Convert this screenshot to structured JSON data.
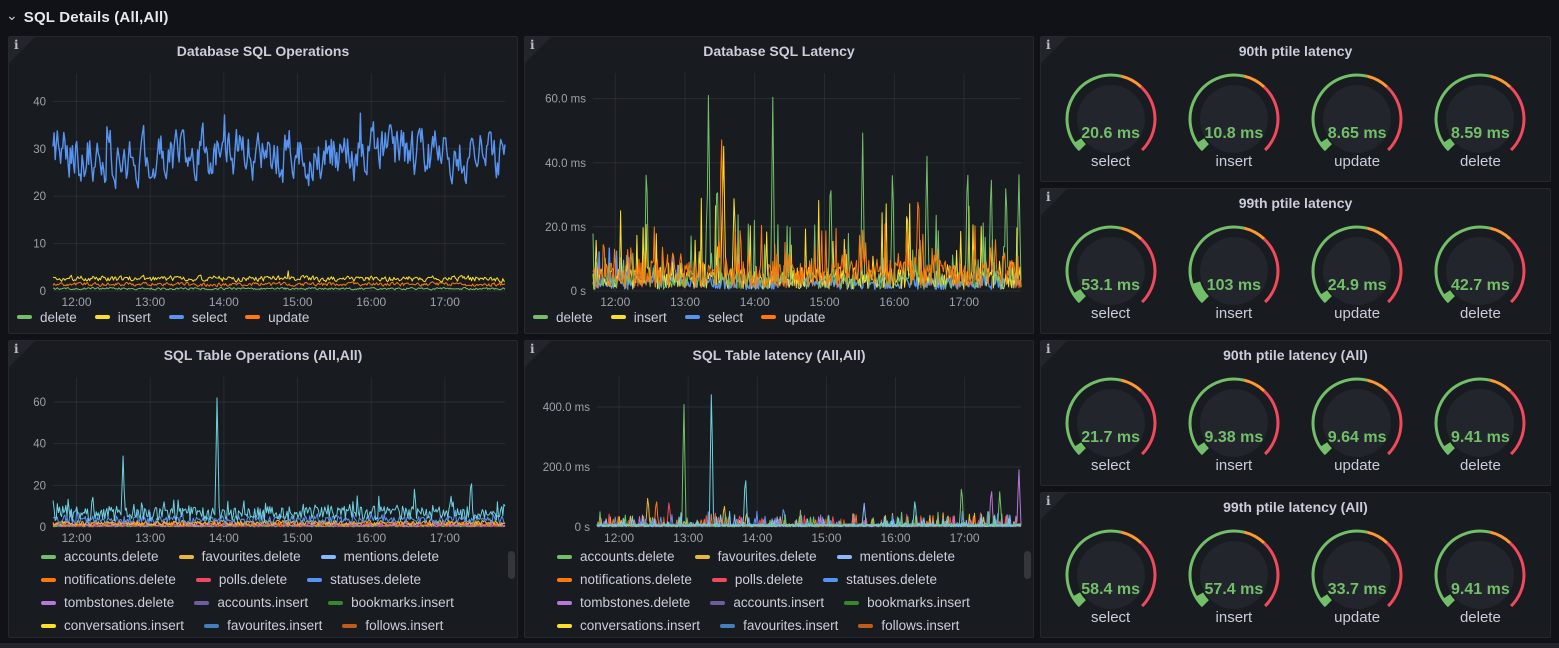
{
  "page": {
    "background": "#111217",
    "panel_bg": "#181b1f",
    "accent_green": "#73BF69",
    "gauge_orange": "#FF9830",
    "gauge_red": "#F2495C"
  },
  "row_header": {
    "title": "SQL Details (All,All)",
    "icon": "chevron-down"
  },
  "panels": {
    "db_ops": {
      "title": "Database SQL Operations",
      "legend": [
        {
          "label": "delete",
          "color": "#73BF69"
        },
        {
          "label": "insert",
          "color": "#FADE2A"
        },
        {
          "label": "select",
          "color": "#5794F2"
        },
        {
          "label": "update",
          "color": "#FF780A"
        }
      ],
      "chart_data": {
        "type": "line",
        "title": "Database SQL Operations",
        "x_ticks": [
          "12:00",
          "13:00",
          "14:00",
          "15:00",
          "16:00",
          "17:00"
        ],
        "y_ticks": [
          {
            "v": 0,
            "label": "0"
          },
          {
            "v": 10,
            "label": "10"
          },
          {
            "v": 20,
            "label": "20"
          },
          {
            "v": 30,
            "label": "30"
          },
          {
            "v": 40,
            "label": "40"
          }
        ],
        "ylim": [
          0,
          46
        ],
        "legend_position": "bottom",
        "grid": true,
        "series": [
          {
            "name": "delete",
            "color": "#73BF69",
            "base": 0.5,
            "noise": 0.3,
            "smooth": 0.3,
            "min": 0.1
          },
          {
            "name": "update",
            "color": "#FF780A",
            "base": 1.4,
            "noise": 0.6,
            "smooth": 0.4,
            "min": 0.5
          },
          {
            "name": "insert",
            "color": "#FADE2A",
            "base": 2.6,
            "noise": 0.9,
            "smooth": 0.4,
            "min": 1.2,
            "peaks": [
              {
                "x": 0.52,
                "v": 4.5
              }
            ]
          },
          {
            "name": "select",
            "color": "#5794F2",
            "base": 29,
            "noise": 10,
            "smooth": 0.58,
            "min": 19.5,
            "max": 41.5,
            "peaks": [
              {
                "x": 0.12,
                "v": 40
              },
              {
                "x": 0.38,
                "v": 41.5
              },
              {
                "x": 0.68,
                "v": 39
              }
            ]
          }
        ]
      }
    },
    "db_latency": {
      "title": "Database SQL Latency",
      "legend": [
        {
          "label": "delete",
          "color": "#73BF69"
        },
        {
          "label": "insert",
          "color": "#FADE2A"
        },
        {
          "label": "select",
          "color": "#5794F2"
        },
        {
          "label": "update",
          "color": "#FF780A"
        }
      ],
      "chart_data": {
        "type": "line",
        "title": "Database SQL Latency",
        "x_ticks": [
          "12:00",
          "13:00",
          "14:00",
          "15:00",
          "16:00",
          "17:00"
        ],
        "y_ticks": [
          {
            "v": 0,
            "label": "0 s"
          },
          {
            "v": 20,
            "label": "20.0 ms"
          },
          {
            "v": 40,
            "label": "40.0 ms"
          },
          {
            "v": 60,
            "label": "60.0 ms"
          }
        ],
        "ylim": [
          0,
          68
        ],
        "legend_position": "bottom",
        "grid": true,
        "series": [
          {
            "name": "select",
            "color": "#5794F2",
            "base": 2.5,
            "noise": 2,
            "spike_p": 0.1,
            "spike_amp": 10,
            "min": 0.3
          },
          {
            "name": "insert",
            "color": "#FADE2A",
            "base": 4,
            "noise": 3.5,
            "spike_p": 0.18,
            "spike_amp": 22,
            "min": 0.5,
            "peaks": [
              {
                "x": 0.305,
                "v": 50
              },
              {
                "x": 0.33,
                "v": 33
              }
            ]
          },
          {
            "name": "delete",
            "color": "#73BF69",
            "base": 3,
            "noise": 2.5,
            "spike_p": 0.15,
            "spike_amp": 20,
            "min": 0.5,
            "peaks": [
              {
                "x": 0.125,
                "v": 44
              },
              {
                "x": 0.27,
                "v": 65
              },
              {
                "x": 0.29,
                "v": 40
              },
              {
                "x": 0.42,
                "v": 61
              },
              {
                "x": 0.555,
                "v": 40
              },
              {
                "x": 0.63,
                "v": 50
              },
              {
                "x": 0.7,
                "v": 42
              },
              {
                "x": 0.78,
                "v": 46
              },
              {
                "x": 0.875,
                "v": 44
              },
              {
                "x": 0.93,
                "v": 41
              },
              {
                "x": 0.965,
                "v": 38
              },
              {
                "x": 0.995,
                "v": 38
              }
            ]
          },
          {
            "name": "update",
            "color": "#FF780A",
            "base": 5,
            "noise": 4.5,
            "spike_p": 0.3,
            "spike_amp": 14,
            "min": 1,
            "peaks": [
              {
                "x": 0.3,
                "v": 55
              },
              {
                "x": 0.76,
                "v": 35
              }
            ]
          }
        ]
      }
    },
    "gauge_90": {
      "title": "90th ptile latency",
      "gauges": [
        {
          "label": "select",
          "value": "20.6 ms"
        },
        {
          "label": "insert",
          "value": "10.8 ms"
        },
        {
          "label": "update",
          "value": "8.65 ms"
        },
        {
          "label": "delete",
          "value": "8.59 ms"
        }
      ]
    },
    "gauge_99": {
      "title": "99th ptile latency",
      "gauges": [
        {
          "label": "select",
          "value": "53.1 ms"
        },
        {
          "label": "insert",
          "value": "103 ms"
        },
        {
          "label": "update",
          "value": "24.9 ms"
        },
        {
          "label": "delete",
          "value": "42.7 ms"
        }
      ]
    },
    "table_ops": {
      "title": "SQL Table Operations (All,All)",
      "legend": [
        {
          "label": "accounts.delete",
          "color": "#73BF69"
        },
        {
          "label": "favourites.delete",
          "color": "#EAB839"
        },
        {
          "label": "mentions.delete",
          "color": "#8AB8FF"
        },
        {
          "label": "notifications.delete",
          "color": "#FF780A"
        },
        {
          "label": "polls.delete",
          "color": "#F2495C"
        },
        {
          "label": "statuses.delete",
          "color": "#5794F2"
        },
        {
          "label": "tombstones.delete",
          "color": "#B877D9"
        },
        {
          "label": "accounts.insert",
          "color": "#705DA0"
        },
        {
          "label": "bookmarks.insert",
          "color": "#37872D"
        },
        {
          "label": "conversations.insert",
          "color": "#FADE2A"
        },
        {
          "label": "favourites.insert",
          "color": "#447EBC"
        },
        {
          "label": "follows.insert",
          "color": "#C15C17"
        }
      ],
      "chart_data": {
        "type": "line",
        "title": "SQL Table Operations (All,All)",
        "x_ticks": [
          "12:00",
          "13:00",
          "14:00",
          "15:00",
          "16:00",
          "17:00"
        ],
        "y_ticks": [
          {
            "v": 0,
            "label": "0"
          },
          {
            "v": 20,
            "label": "20"
          },
          {
            "v": 40,
            "label": "40"
          },
          {
            "v": 60,
            "label": "60"
          }
        ],
        "ylim": [
          0,
          72
        ],
        "legend_position": "bottom",
        "grid": true,
        "series": [
          {
            "name": "accounts.delete",
            "color": "#73BF69",
            "base": 0.4,
            "noise": 0.3,
            "min": 0.1
          },
          {
            "name": "polls.delete",
            "color": "#F2495C",
            "base": 0.7,
            "noise": 0.5,
            "min": 0.1
          },
          {
            "name": "tombstones.delete",
            "color": "#B877D9",
            "base": 1.0,
            "noise": 0.7,
            "min": 0.2
          },
          {
            "name": "notifications.delete",
            "color": "#FF780A",
            "base": 1.5,
            "noise": 1.0,
            "min": 0.3
          },
          {
            "name": "favourites.delete",
            "color": "#EAB839",
            "base": 2.0,
            "noise": 1.2,
            "min": 0.4
          },
          {
            "name": "statuses.delete",
            "color": "#5794F2",
            "base": 3.5,
            "noise": 2.0,
            "spike_p": 0.1,
            "spike_amp": 4,
            "min": 0.5
          },
          {
            "name": "unlabeled_cyan_series",
            "color": "#6ED0E0",
            "base": 6.5,
            "noise": 3.5,
            "spike_p": 0.25,
            "spike_amp": 6,
            "min": 1.5,
            "peaks": [
              {
                "x": 0.155,
                "v": 35
              },
              {
                "x": 0.363,
                "v": 65
              },
              {
                "x": 0.8,
                "v": 20
              },
              {
                "x": 0.88,
                "v": 17
              },
              {
                "x": 0.925,
                "v": 26
              }
            ]
          }
        ]
      }
    },
    "table_latency": {
      "title": "SQL Table latency (All,All)",
      "legend": [
        {
          "label": "accounts.delete",
          "color": "#73BF69"
        },
        {
          "label": "favourites.delete",
          "color": "#EAB839"
        },
        {
          "label": "mentions.delete",
          "color": "#8AB8FF"
        },
        {
          "label": "notifications.delete",
          "color": "#FF780A"
        },
        {
          "label": "polls.delete",
          "color": "#F2495C"
        },
        {
          "label": "statuses.delete",
          "color": "#5794F2"
        },
        {
          "label": "tombstones.delete",
          "color": "#B877D9"
        },
        {
          "label": "accounts.insert",
          "color": "#705DA0"
        },
        {
          "label": "bookmarks.insert",
          "color": "#37872D"
        },
        {
          "label": "conversations.insert",
          "color": "#FADE2A"
        },
        {
          "label": "favourites.insert",
          "color": "#447EBC"
        },
        {
          "label": "follows.insert",
          "color": "#C15C17"
        }
      ],
      "chart_data": {
        "type": "line",
        "title": "SQL Table latency (All,All)",
        "x_ticks": [
          "12:00",
          "13:00",
          "14:00",
          "15:00",
          "16:00",
          "17:00"
        ],
        "y_ticks": [
          {
            "v": 0,
            "label": "0 s"
          },
          {
            "v": 200,
            "label": "200.0 ms"
          },
          {
            "v": 400,
            "label": "400.0 ms"
          }
        ],
        "ylim": [
          0,
          500
        ],
        "legend_position": "bottom",
        "grid": true,
        "series": [
          {
            "name": "follows.insert",
            "color": "#C15C17",
            "base": 4,
            "noise": 4,
            "spike_p": 0.1,
            "spike_amp": 30,
            "min": 1
          },
          {
            "name": "favourites.delete",
            "color": "#EAB839",
            "base": 6,
            "noise": 5,
            "spike_p": 0.15,
            "spike_amp": 45,
            "min": 1,
            "peaks": [
              {
                "x": 0.12,
                "v": 110
              },
              {
                "x": 0.3,
                "v": 80
              }
            ]
          },
          {
            "name": "polls.delete",
            "color": "#F2495C",
            "base": 5,
            "noise": 4,
            "spike_p": 0.12,
            "spike_amp": 40,
            "min": 1,
            "peaks": [
              {
                "x": 0.17,
                "v": 90
              }
            ]
          },
          {
            "name": "notifications.delete",
            "color": "#FF780A",
            "base": 6,
            "noise": 5,
            "spike_p": 0.18,
            "spike_amp": 40,
            "min": 1,
            "peaks": [
              {
                "x": 0.14,
                "v": 100
              }
            ]
          },
          {
            "name": "tombstones.delete",
            "color": "#B877D9",
            "base": 5,
            "noise": 4,
            "spike_p": 0.12,
            "spike_amp": 45,
            "min": 1,
            "peaks": [
              {
                "x": 0.93,
                "v": 140
              },
              {
                "x": 0.995,
                "v": 200
              }
            ]
          },
          {
            "name": "statuses.delete",
            "color": "#5794F2",
            "base": 6,
            "noise": 5,
            "spike_p": 0.15,
            "spike_amp": 45,
            "min": 1,
            "peaks": [
              {
                "x": 0.44,
                "v": 70
              }
            ]
          },
          {
            "name": "mentions.delete",
            "color": "#8AB8FF",
            "base": 5,
            "noise": 4,
            "spike_p": 0.1,
            "spike_amp": 40,
            "min": 1,
            "peaks": [
              {
                "x": 0.63,
                "v": 80
              }
            ]
          },
          {
            "name": "accounts.delete",
            "color": "#73BF69",
            "base": 5,
            "noise": 4,
            "spike_p": 0.12,
            "spike_amp": 50,
            "min": 1,
            "peaks": [
              {
                "x": 0.205,
                "v": 430
              },
              {
                "x": 0.86,
                "v": 150
              },
              {
                "x": 0.95,
                "v": 120
              }
            ]
          },
          {
            "name": "unlabeled_cyan_series",
            "color": "#6ED0E0",
            "base": 5,
            "noise": 4,
            "spike_p": 0.12,
            "spike_amp": 45,
            "min": 1,
            "peaks": [
              {
                "x": 0.27,
                "v": 470
              },
              {
                "x": 0.35,
                "v": 185
              },
              {
                "x": 0.75,
                "v": 95
              }
            ]
          }
        ]
      }
    },
    "gauge_90_all": {
      "title": "90th ptile latency (All)",
      "gauges": [
        {
          "label": "select",
          "value": "21.7 ms"
        },
        {
          "label": "insert",
          "value": "9.38 ms"
        },
        {
          "label": "update",
          "value": "9.64 ms"
        },
        {
          "label": "delete",
          "value": "9.41 ms"
        }
      ]
    },
    "gauge_99_all": {
      "title": "99th ptile latency (All)",
      "gauges": [
        {
          "label": "select",
          "value": "58.4 ms"
        },
        {
          "label": "insert",
          "value": "57.4 ms"
        },
        {
          "label": "update",
          "value": "33.7 ms"
        },
        {
          "label": "delete",
          "value": "9.41 ms"
        }
      ]
    }
  }
}
